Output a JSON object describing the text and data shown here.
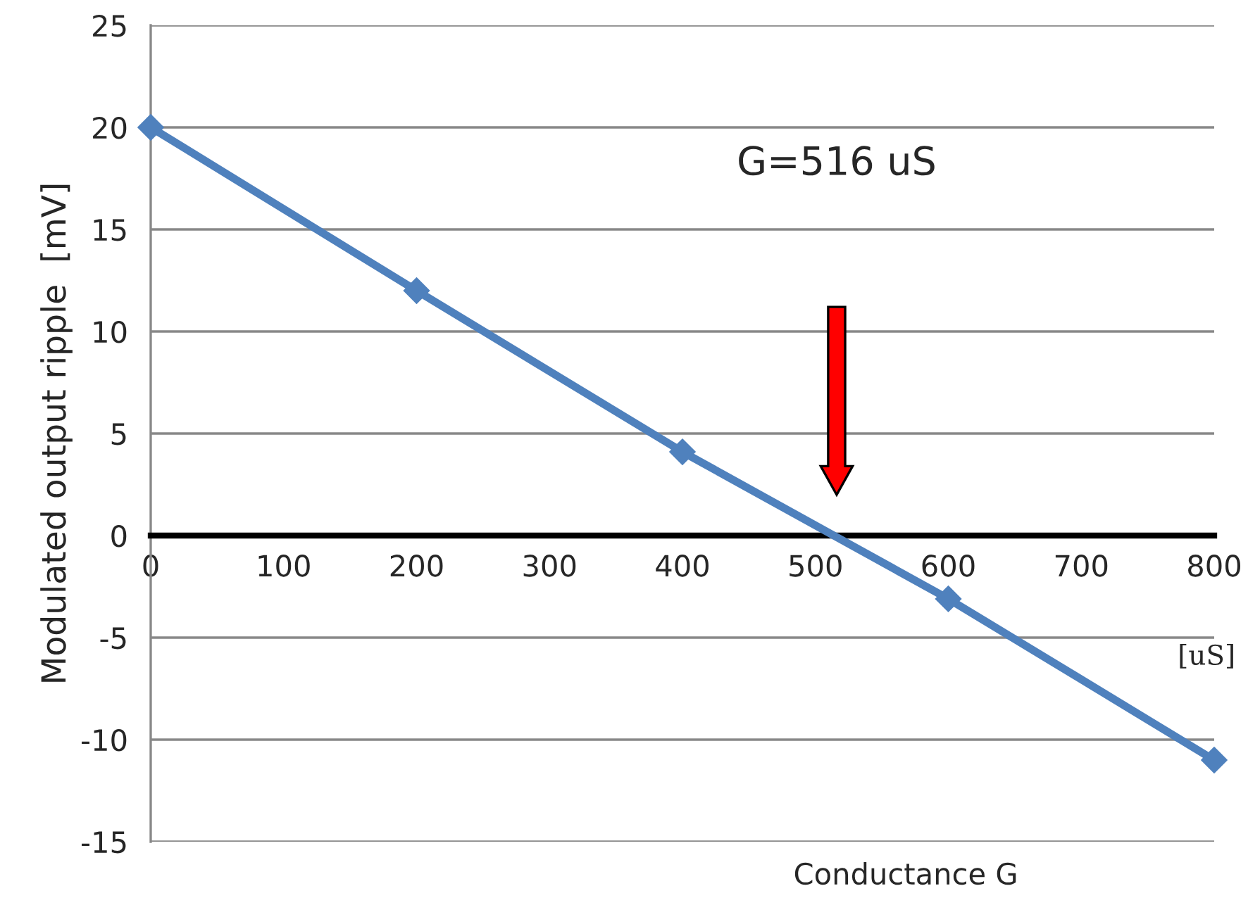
{
  "chart_data": {
    "type": "line",
    "xlabel": "Conductance G",
    "ylabel": "Modulated output ripple  [mV]",
    "x": [
      0,
      200,
      400,
      600,
      800
    ],
    "series": [
      {
        "color": "#4f81bd",
        "values": [
          20,
          12,
          4.1,
          -3.1,
          -11
        ]
      }
    ],
    "xlim": [
      0,
      800
    ],
    "xticks": [
      0,
      100,
      200,
      300,
      400,
      500,
      600,
      700,
      800
    ],
    "ylim": [
      -15,
      25
    ],
    "yticks": [
      -15,
      -10,
      -5,
      0,
      5,
      10,
      15,
      20,
      25
    ],
    "grid": "y",
    "marker": "diamond",
    "line_style": "solid",
    "legend": false,
    "annotations": [
      "G=516 uS",
      "[uS]"
    ]
  }
}
